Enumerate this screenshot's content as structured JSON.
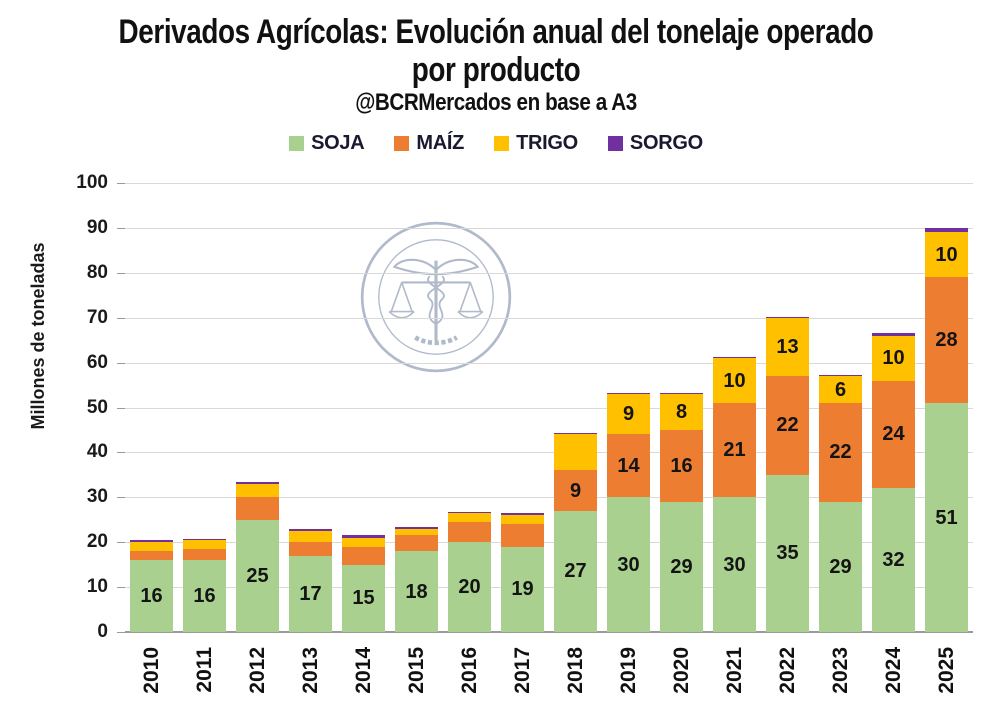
{
  "watermark": {
    "text": "BOLSA DE COMERCIO DE ROSARIO"
  },
  "chart_data": {
    "type": "bar",
    "stacked": true,
    "title": "Derivados Agrícolas: Evolución anual del tonelaje operado por producto",
    "title_lines": [
      "Derivados Agrícolas: Evolución anual del tonelaje operado",
      "por producto"
    ],
    "subtitle": "@BCRMercados en base a A3",
    "xlabel": "",
    "ylabel": "Millones de toneladas",
    "ylim": [
      0,
      100
    ],
    "ytick_step": 10,
    "grid": true,
    "legend_position": "top",
    "categories": [
      "2010",
      "2011",
      "2012",
      "2013",
      "2014",
      "2015",
      "2016",
      "2017",
      "2018",
      "2019",
      "2020",
      "2021",
      "2022",
      "2023",
      "2024",
      "2025"
    ],
    "series": [
      {
        "name": "SOJA",
        "color": "#A9D08E",
        "values": [
          16,
          16,
          25,
          17,
          15,
          18,
          20,
          19,
          27,
          30,
          29,
          30,
          35,
          29,
          32,
          51
        ],
        "labels": [
          "16",
          "16",
          "25",
          "17",
          "15",
          "18",
          "20",
          "19",
          "27",
          "30",
          "29",
          "30",
          "35",
          "29",
          "32",
          "51"
        ]
      },
      {
        "name": "MAÍZ",
        "color": "#ED7D31",
        "values": [
          2,
          2.5,
          5,
          3,
          4,
          3.5,
          4.5,
          5,
          9,
          14,
          16,
          21,
          22,
          22,
          24,
          28
        ],
        "labels": [
          "",
          "",
          "",
          "",
          "",
          "",
          "",
          "",
          "9",
          "14",
          "16",
          "21",
          "22",
          "22",
          "24",
          "28"
        ]
      },
      {
        "name": "TRIGO",
        "color": "#FFC000",
        "values": [
          2,
          2,
          3,
          2.5,
          2,
          1.5,
          2,
          2,
          8,
          9,
          8,
          10,
          13,
          6,
          10,
          10
        ],
        "labels": [
          "",
          "",
          "",
          "",
          "",
          "",
          "",
          "",
          "",
          "9",
          "8",
          "10",
          "13",
          "6",
          "10",
          "10"
        ]
      },
      {
        "name": "SORGO",
        "color": "#7030A0",
        "values": [
          0.5,
          0.3,
          0.5,
          0.5,
          0.5,
          0.4,
          0.2,
          0.5,
          0.3,
          0.2,
          0.2,
          0.2,
          0.2,
          0.2,
          0.5,
          1
        ],
        "labels": [
          "",
          "",
          "",
          "",
          "",
          "",
          "",
          "",
          "",
          "",
          "",
          "",
          "",
          "",
          "",
          ""
        ]
      }
    ],
    "colors": {
      "gridline": "#d9d9d9",
      "axisline": "#9a9a9a",
      "label_text": "#141414",
      "watermark": "#92A0B7"
    }
  }
}
